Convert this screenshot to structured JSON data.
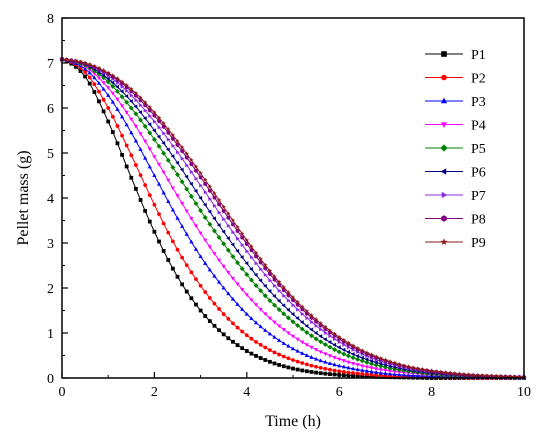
{
  "chart_data": {
    "type": "line",
    "xlabel": "Time (h)",
    "ylabel": "Pellet mass (g)",
    "xlim": [
      0,
      10
    ],
    "ylim": [
      0,
      8
    ],
    "x_ticks": [
      0,
      2,
      4,
      6,
      8,
      10
    ],
    "y_ticks": [
      0,
      1,
      2,
      3,
      4,
      5,
      6,
      7,
      8
    ],
    "grid": false,
    "legend_position": "top-right",
    "x_samples": [
      0,
      0.5,
      1,
      1.5,
      2,
      2.5,
      3,
      3.5,
      4,
      4.5,
      5,
      5.5,
      6,
      6.5,
      7,
      7.5,
      8,
      8.5,
      9,
      9.5,
      10
    ],
    "series": [
      {
        "name": "P1",
        "color": "#000000",
        "marker": "square",
        "values": [
          7.08,
          6.7,
          5.7,
          4.45,
          3.25,
          2.25,
          1.5,
          0.97,
          0.6,
          0.36,
          0.21,
          0.12,
          0.07,
          0.04,
          0.02,
          0.01,
          0.0,
          0.0,
          0.0,
          0.0,
          0.0
        ]
      },
      {
        "name": "P2",
        "color": "#ff0000",
        "marker": "circle",
        "values": [
          7.08,
          6.8,
          6.0,
          4.95,
          3.85,
          2.85,
          2.05,
          1.42,
          0.95,
          0.62,
          0.4,
          0.25,
          0.15,
          0.09,
          0.05,
          0.03,
          0.02,
          0.01,
          0.0,
          0.0,
          0.0
        ]
      },
      {
        "name": "P3",
        "color": "#0000ff",
        "marker": "triangle-up",
        "values": [
          7.08,
          6.87,
          6.28,
          5.45,
          4.5,
          3.55,
          2.7,
          2.0,
          1.42,
          0.98,
          0.65,
          0.42,
          0.27,
          0.17,
          0.1,
          0.06,
          0.04,
          0.02,
          0.01,
          0.01,
          0.0
        ]
      },
      {
        "name": "P4",
        "color": "#ff00ff",
        "marker": "triangle-down",
        "values": [
          7.08,
          6.92,
          6.45,
          5.75,
          4.92,
          4.05,
          3.22,
          2.48,
          1.85,
          1.33,
          0.93,
          0.63,
          0.42,
          0.27,
          0.17,
          0.11,
          0.07,
          0.04,
          0.02,
          0.01,
          0.01
        ]
      },
      {
        "name": "P5",
        "color": "#008000",
        "marker": "diamond",
        "values": [
          7.08,
          6.95,
          6.58,
          6.0,
          5.3,
          4.52,
          3.72,
          2.98,
          2.3,
          1.72,
          1.25,
          0.87,
          0.58,
          0.38,
          0.24,
          0.15,
          0.09,
          0.05,
          0.03,
          0.02,
          0.01
        ]
      },
      {
        "name": "P6",
        "color": "#000080",
        "marker": "triangle-left",
        "values": [
          7.08,
          6.97,
          6.65,
          6.15,
          5.5,
          4.78,
          4.0,
          3.25,
          2.55,
          1.93,
          1.42,
          1.0,
          0.68,
          0.45,
          0.29,
          0.18,
          0.11,
          0.07,
          0.04,
          0.02,
          0.01
        ]
      },
      {
        "name": "P7",
        "color": "#8a2be2",
        "marker": "triangle-right",
        "values": [
          7.08,
          6.98,
          6.72,
          6.28,
          5.7,
          5.02,
          4.28,
          3.53,
          2.82,
          2.17,
          1.62,
          1.16,
          0.8,
          0.53,
          0.34,
          0.21,
          0.13,
          0.08,
          0.05,
          0.03,
          0.02
        ]
      },
      {
        "name": "P8",
        "color": "#800080",
        "marker": "hexagon",
        "values": [
          7.08,
          6.99,
          6.76,
          6.37,
          5.83,
          5.18,
          4.46,
          3.71,
          2.98,
          2.31,
          1.73,
          1.25,
          0.87,
          0.58,
          0.38,
          0.24,
          0.15,
          0.09,
          0.05,
          0.03,
          0.02
        ]
      },
      {
        "name": "P9",
        "color": "#8b1a1a",
        "marker": "star",
        "values": [
          7.08,
          7.0,
          6.78,
          6.42,
          5.9,
          5.26,
          4.55,
          3.8,
          3.06,
          2.38,
          1.79,
          1.3,
          0.91,
          0.61,
          0.4,
          0.25,
          0.16,
          0.1,
          0.06,
          0.04,
          0.02
        ]
      }
    ]
  }
}
